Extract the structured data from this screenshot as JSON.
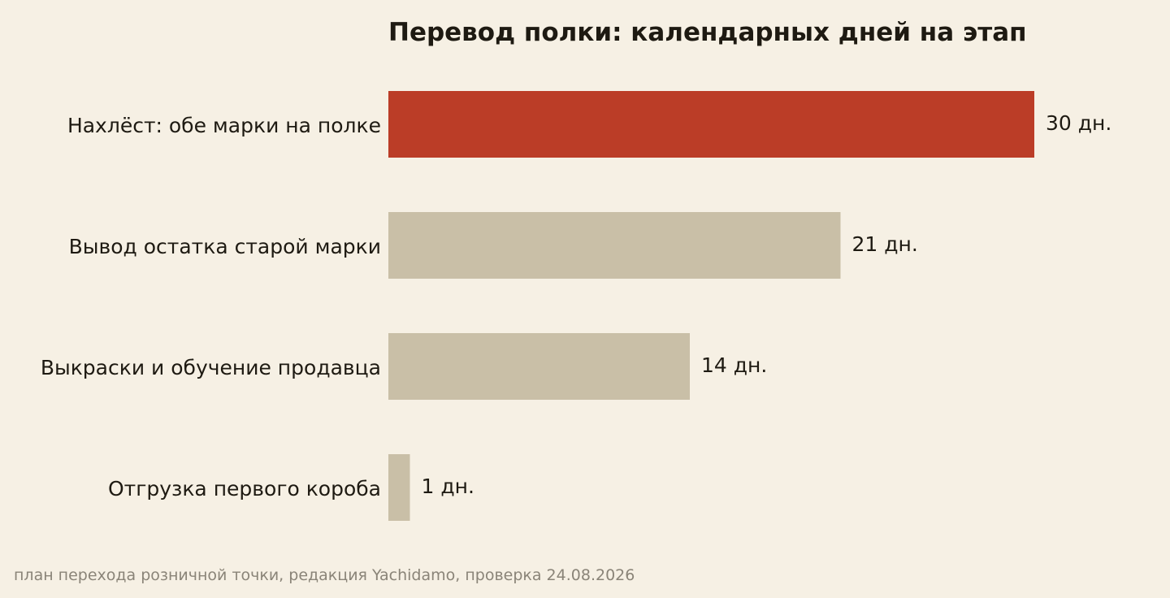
{
  "chart_data": {
    "type": "bar",
    "orientation": "horizontal",
    "title": "Перевод полки: календарных дней на этап",
    "categories": [
      "Нахлёст: обе марки на полке",
      "Вывод остатка старой марки",
      "Выкраски и обучение продавца",
      "Отгрузка первого короба"
    ],
    "values": [
      30,
      21,
      14,
      1
    ],
    "value_labels": [
      "30 дн.",
      "21 дн.",
      "14 дн.",
      "1 дн."
    ],
    "xlim": [
      0,
      30
    ],
    "xlabel": "",
    "ylabel": "",
    "grid": false,
    "legend": "none",
    "colors": {
      "highlight": "#bb3d27",
      "default": "#c9bfa7",
      "background": "#f6f0e4",
      "text": "#1e1a12",
      "note": "#8a8478"
    },
    "highlight_index": 0
  },
  "footer": {
    "source_note": "план перехода розничной точки, редакция Yachidamo, проверка 24.08.2026"
  }
}
